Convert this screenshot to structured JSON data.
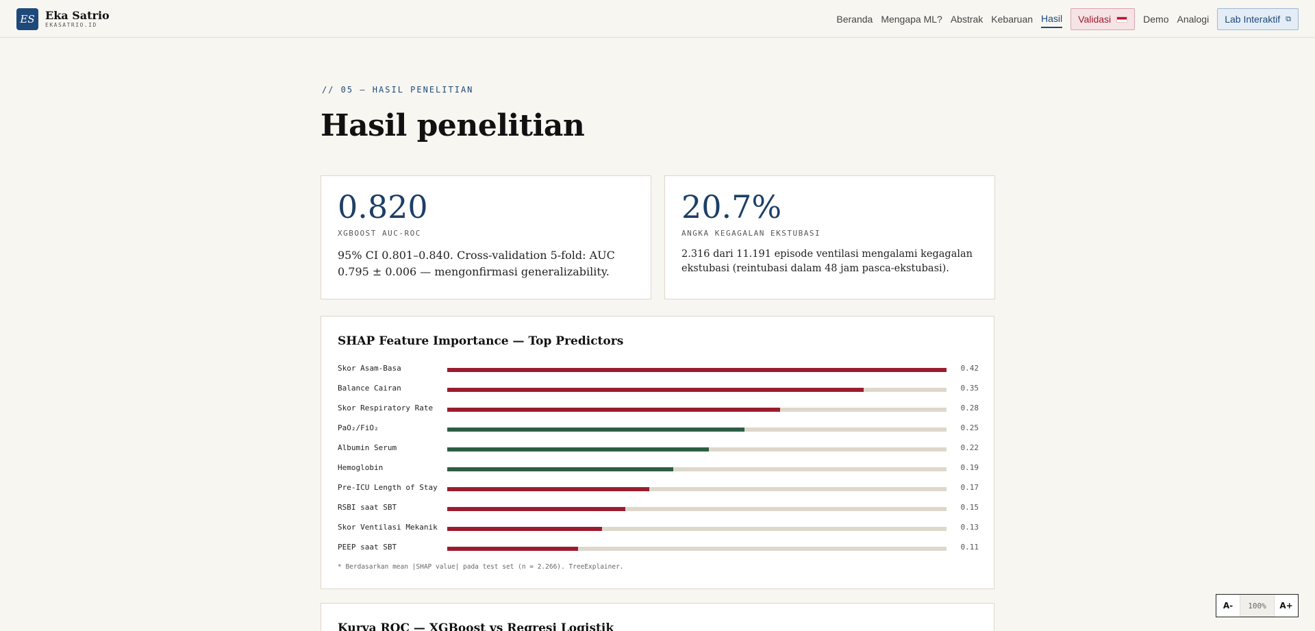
{
  "brand": {
    "logo": "ES",
    "name": "Eka Satrio",
    "subtitle": "EKASATRIO.ID"
  },
  "nav": {
    "items": [
      "Beranda",
      "Mengapa ML?",
      "Abstrak",
      "Kebaruan",
      "Hasil"
    ],
    "active": "Hasil",
    "validasi": "Validasi",
    "more": [
      "Demo",
      "Analogi"
    ],
    "lab": "Lab Interaktif"
  },
  "section": {
    "kicker": "// 05 — HASIL PENELITIAN",
    "title": "Hasil penelitian"
  },
  "stats": [
    {
      "value": "0.820",
      "label": "XGBOOST AUC-ROC",
      "desc": "95% CI 0.801–0.840. Cross-validation 5-fold: AUC 0.795 ± 0.006 — mengonfirmasi generalizability."
    },
    {
      "value": "20.7%",
      "label": "ANGKA KEGAGALAN EKSTUBASI",
      "desc": "2.316 dari 11.191 episode ventilasi mengalami kegagalan ekstubasi (reintubasi dalam 48 jam pasca-ekstubasi)."
    }
  ],
  "shap": {
    "title": "SHAP Feature Importance — Top Predictors",
    "note": "* Berdasarkan mean |SHAP value| pada test set (n = 2.266). TreeExplainer.",
    "colors": {
      "risk": "#9b1c2e",
      "protective": "#2d5e45",
      "track": "#ddd8cb"
    }
  },
  "chart_data": {
    "type": "bar",
    "orientation": "horizontal",
    "title": "SHAP Feature Importance — Top Predictors",
    "categories": [
      "Skor Asam-Basa",
      "Balance Cairan",
      "Skor Respiratory Rate",
      "PaO₂/FiO₂",
      "Albumin Serum",
      "Hemoglobin",
      "Pre-ICU Length of Stay",
      "RSBI saat SBT",
      "Skor Ventilasi Mekanik",
      "PEEP saat SBT"
    ],
    "values": [
      0.42,
      0.35,
      0.28,
      0.25,
      0.22,
      0.19,
      0.17,
      0.15,
      0.13,
      0.11
    ],
    "value_labels": [
      "0.42",
      "0.35",
      "0.28",
      "0.25",
      "0.22",
      "0.19",
      "0.17",
      "0.15",
      "0.13",
      "0.11"
    ],
    "bar_colors": [
      "#9b1c2e",
      "#9b1c2e",
      "#9b1c2e",
      "#2d5e45",
      "#2d5e45",
      "#2d5e45",
      "#9b1c2e",
      "#9b1c2e",
      "#9b1c2e",
      "#9b1c2e"
    ],
    "xlim": [
      0,
      0.42
    ],
    "grid": false
  },
  "roc": {
    "title": "Kurva ROC — XGBoost vs Regresi Logistik"
  },
  "fontctl": {
    "minus": "A-",
    "zoom": "100%",
    "plus": "A+"
  }
}
